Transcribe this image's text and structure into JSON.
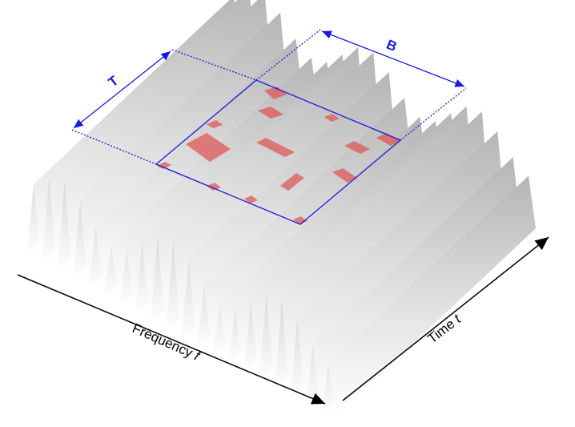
{
  "labels": {
    "period": "T",
    "bandwidth": "B"
  },
  "axes": [
    {
      "label": "Frequency",
      "symbol": "f"
    },
    {
      "label": "Time",
      "symbol": "t"
    }
  ]
}
